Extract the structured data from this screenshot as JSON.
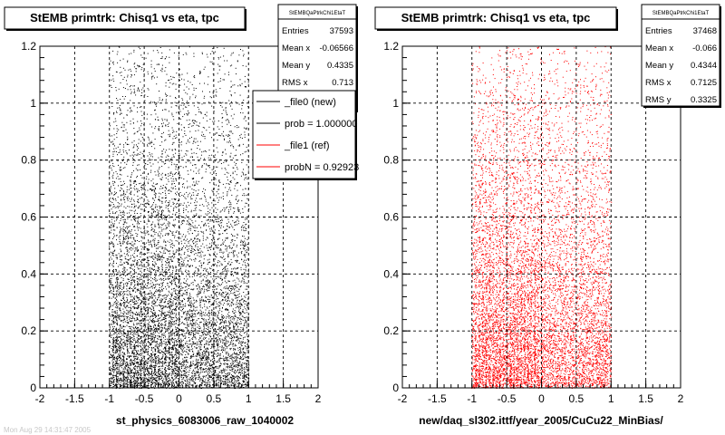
{
  "footer_text": "Mon Aug 29 14:31:47 2005",
  "chart_data": [
    {
      "type": "scatter",
      "title": "StEMB primtrk: Chisq1 vs eta, tpc",
      "xlabel": "st_physics_6083006_raw_1040002",
      "ylabel": "",
      "xlim": [
        -2,
        2
      ],
      "ylim": [
        0,
        1.2
      ],
      "x_ticks": [
        "-2",
        "-1.5",
        "-1",
        "-0.5",
        "0",
        "0.5",
        "1",
        "1.5",
        "2"
      ],
      "y_ticks": [
        "0",
        "0.2",
        "0.4",
        "0.6",
        "0.8",
        "1",
        "1.2"
      ],
      "grid": true,
      "point_color": "#000000",
      "stats": {
        "name": "StEMBQaPtrkChi1EtaT",
        "rows": [
          {
            "label": "Entries",
            "value": "37593"
          },
          {
            "label": "Mean x",
            "value": "-0.06566"
          },
          {
            "label": "Mean y",
            "value": "0.4335"
          },
          {
            "label": "RMS x",
            "value": "0.713"
          }
        ]
      },
      "legend": {
        "placement": "top-right",
        "entries": [
          {
            "label": "_file0 (new)",
            "color": "#000000"
          },
          {
            "label": "prob = 1.000000",
            "color": "#000000"
          },
          {
            "label": "_file1 (ref)",
            "color": "#ff0000"
          },
          {
            "label": "probN = 0.92923",
            "color": "#ff0000"
          }
        ]
      },
      "distribution": {
        "entries": 37593,
        "mean_x": -0.06566,
        "mean_y": 0.4335,
        "rms_x": 0.713,
        "x_range": [
          -1,
          1
        ],
        "y_range": [
          0,
          1.2
        ]
      }
    },
    {
      "type": "scatter",
      "title": "StEMB primtrk: Chisq1 vs eta, tpc",
      "xlabel": "new/daq_sl302.ittf/year_2005/CuCu22_MinBias/",
      "ylabel": "",
      "xlim": [
        -2,
        2
      ],
      "ylim": [
        0,
        1.2
      ],
      "x_ticks": [
        "-2",
        "-1.5",
        "-1",
        "-0.5",
        "0",
        "0.5",
        "1",
        "1.5",
        "2"
      ],
      "y_ticks": [
        "0",
        "0.2",
        "0.4",
        "0.6",
        "0.8",
        "1",
        "1.2"
      ],
      "grid": true,
      "point_color": "#ff0000",
      "stats": {
        "name": "StEMBQaPtrkChi1EtaT",
        "rows": [
          {
            "label": "Entries",
            "value": "37468"
          },
          {
            "label": "Mean x",
            "value": "-0.066"
          },
          {
            "label": "Mean y",
            "value": "0.4344"
          },
          {
            "label": "RMS x",
            "value": "0.7125"
          },
          {
            "label": "RMS y",
            "value": "0.3325"
          }
        ]
      },
      "distribution": {
        "entries": 37468,
        "mean_x": -0.066,
        "mean_y": 0.4344,
        "rms_x": 0.7125,
        "rms_y": 0.3325,
        "x_range": [
          -1,
          1
        ],
        "y_range": [
          0,
          1.2
        ]
      }
    }
  ]
}
